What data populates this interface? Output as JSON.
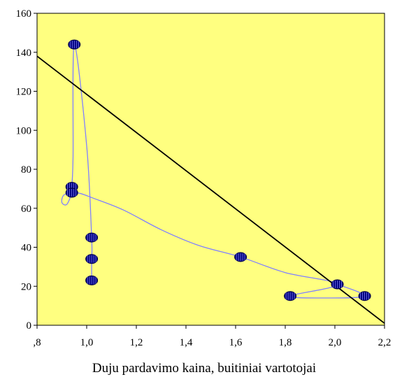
{
  "chart_data": {
    "type": "scatter",
    "title": "",
    "xlabel": "Duju pardavimo kaina, buitiniai vartotojai",
    "ylabel": "",
    "xlim": [
      0.8,
      2.2
    ],
    "ylim": [
      0,
      160
    ],
    "x_ticks": [
      0.8,
      1.0,
      1.2,
      1.4,
      1.6,
      1.8,
      2.0,
      2.2
    ],
    "x_tick_labels": [
      ",8",
      "1,0",
      "1,2",
      "1,4",
      "1,6",
      "1,8",
      "2,0",
      "2,2"
    ],
    "y_ticks": [
      0,
      20,
      40,
      60,
      80,
      100,
      120,
      140,
      160
    ],
    "y_tick_labels": [
      "0",
      "20",
      "40",
      "60",
      "80",
      "100",
      "120",
      "140",
      "160"
    ],
    "grid": false,
    "legend": "none",
    "points": [
      {
        "x": 0.95,
        "y": 144
      },
      {
        "x": 0.94,
        "y": 71
      },
      {
        "x": 0.94,
        "y": 68
      },
      {
        "x": 1.02,
        "y": 45
      },
      {
        "x": 1.02,
        "y": 34
      },
      {
        "x": 1.02,
        "y": 23
      },
      {
        "x": 1.62,
        "y": 35
      },
      {
        "x": 2.01,
        "y": 21
      },
      {
        "x": 1.82,
        "y": 15
      },
      {
        "x": 2.12,
        "y": 15
      }
    ],
    "smooth_path": [
      [
        1.02,
        23
      ],
      [
        1.02,
        34
      ],
      [
        1.02,
        45
      ],
      [
        1.0,
        92
      ],
      [
        0.95,
        144
      ],
      [
        0.945,
        86
      ],
      [
        0.94,
        71
      ],
      [
        0.94,
        68
      ],
      [
        0.92,
        62
      ],
      [
        0.9,
        63
      ],
      [
        0.91,
        67
      ],
      [
        0.96,
        68
      ],
      [
        1.03,
        65
      ],
      [
        1.15,
        59
      ],
      [
        1.3,
        49
      ],
      [
        1.45,
        41
      ],
      [
        1.62,
        35
      ],
      [
        1.8,
        27
      ],
      [
        2.01,
        21
      ],
      [
        1.82,
        15
      ],
      [
        1.96,
        14
      ],
      [
        2.12,
        15
      ],
      [
        2.01,
        21
      ]
    ],
    "trend_line": {
      "x": [
        0.8,
        2.2
      ],
      "y": [
        138,
        1
      ]
    },
    "colors": {
      "plot_background": "#ffff80",
      "marker_fill": "#000080",
      "connector_line": "#8080ff",
      "trend_line": "#000000"
    }
  }
}
